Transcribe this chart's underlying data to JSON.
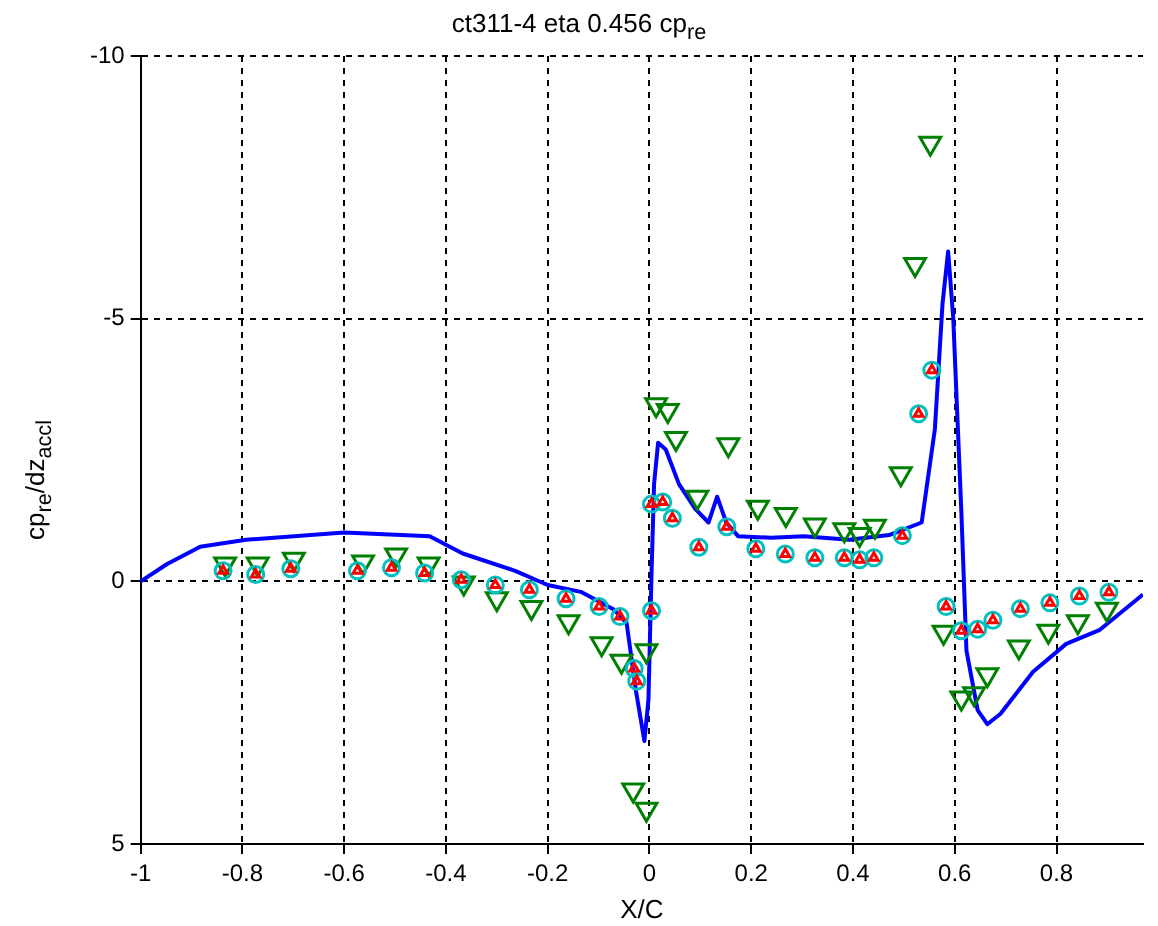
{
  "chart_data": {
    "type": "line",
    "title": "ct311-4 eta 0.456 cp$_{re}$",
    "xlabel": "X/C",
    "ylabel": "cp$_{re}$/dz$_{accl}$",
    "xlim": [
      -1,
      0.97
    ],
    "xticks": [
      -1,
      -0.8,
      -0.6,
      -0.4,
      -0.2,
      0,
      0.2,
      0.4,
      0.6,
      0.8
    ],
    "ylim": [
      5,
      -10
    ],
    "yticks": [
      -10,
      -5,
      0,
      5
    ],
    "grid": true,
    "series": [
      {
        "color": "#0000ff",
        "marker": "none",
        "x": [
          -1,
          -0.948,
          -0.883,
          -0.793,
          -0.6,
          -0.432,
          -0.367,
          -0.264,
          -0.2,
          -0.135,
          -0.071,
          -0.045,
          -0.026,
          -0.01,
          -0.002,
          0.004,
          0.009,
          0.017,
          0.032,
          0.058,
          0.09,
          0.116,
          0.133,
          0.151,
          0.174,
          0.239,
          0.303,
          0.393,
          0.471,
          0.535,
          0.561,
          0.576,
          0.587,
          0.597,
          0.613,
          0.623,
          0.645,
          0.664,
          0.69,
          0.754,
          0.819,
          0.884,
          0.97
        ],
        "values": [
          0,
          -0.33,
          -0.66,
          -0.79,
          -0.93,
          -0.86,
          -0.53,
          -0.2,
          0.07,
          0.2,
          0.53,
          0.79,
          2.12,
          3.04,
          2.25,
          -0.13,
          -1.85,
          -2.64,
          -2.51,
          -1.85,
          -1.38,
          -1.12,
          -1.61,
          -1.12,
          -0.86,
          -0.83,
          -0.86,
          -0.79,
          -0.88,
          -1.12,
          -2.9,
          -5.29,
          -6.28,
          -5.02,
          -1.32,
          1.32,
          2.45,
          2.72,
          2.52,
          1.72,
          1.19,
          0.93,
          0.25
        ]
      },
      {
        "type": "scatter",
        "color": "#008000",
        "marker": "triangle_down",
        "x": [
          -0.834,
          -0.77,
          -0.699,
          -0.563,
          -0.498,
          -0.434,
          -0.365,
          -0.3,
          -0.232,
          -0.159,
          -0.094,
          -0.055,
          -0.006,
          -0.032,
          -0.006,
          0.013,
          0.036,
          0.052,
          0.094,
          0.155,
          0.213,
          0.268,
          0.325,
          0.383,
          0.413,
          0.443,
          0.494,
          0.522,
          0.552,
          0.578,
          0.613,
          0.638,
          0.664,
          0.726,
          0.784,
          0.842,
          0.899
        ],
        "values": [
          -0.33,
          -0.33,
          -0.42,
          -0.37,
          -0.5,
          -0.33,
          0.03,
          0.33,
          0.5,
          0.77,
          1.19,
          1.52,
          1.32,
          3.97,
          4.34,
          -3.36,
          -3.25,
          -2.72,
          -1.6,
          -2.6,
          -1.41,
          -1.27,
          -1.07,
          -0.98,
          -0.89,
          -1.05,
          -2.05,
          -6.03,
          -8.34,
          0.97,
          2.22,
          2.14,
          1.78,
          1.25,
          0.95,
          0.77,
          0.53
        ]
      },
      {
        "type": "scatter",
        "color": "#00c0c0",
        "marker": "circle",
        "x": [
          -0.838,
          -0.774,
          -0.705,
          -0.574,
          -0.507,
          -0.442,
          -0.37,
          -0.303,
          -0.236,
          -0.164,
          -0.099,
          -0.058,
          -0.03,
          -0.025,
          0.004,
          0.004,
          0.026,
          0.045,
          0.097,
          0.152,
          0.209,
          0.267,
          0.325,
          0.383,
          0.413,
          0.441,
          0.497,
          0.529,
          0.555,
          0.583,
          0.613,
          0.645,
          0.675,
          0.729,
          0.787,
          0.845,
          0.903
        ],
        "values": [
          -0.2,
          -0.13,
          -0.24,
          -0.2,
          -0.26,
          -0.16,
          -0.03,
          0.07,
          0.16,
          0.33,
          0.48,
          0.67,
          1.66,
          1.9,
          0.56,
          -1.47,
          -1.51,
          -1.2,
          -0.65,
          -1.04,
          -0.62,
          -0.52,
          -0.45,
          -0.45,
          -0.41,
          -0.45,
          -0.87,
          -3.19,
          -4.02,
          0.48,
          0.94,
          0.91,
          0.74,
          0.52,
          0.41,
          0.28,
          0.21
        ]
      },
      {
        "type": "scatter",
        "color": "#ff0000",
        "marker": "triangle",
        "x": [
          -0.838,
          -0.774,
          -0.705,
          -0.574,
          -0.507,
          -0.442,
          -0.37,
          -0.303,
          -0.236,
          -0.164,
          -0.099,
          -0.058,
          -0.03,
          -0.025,
          0.004,
          0.004,
          0.026,
          0.045,
          0.097,
          0.152,
          0.209,
          0.267,
          0.325,
          0.383,
          0.413,
          0.441,
          0.497,
          0.529,
          0.555,
          0.583,
          0.613,
          0.645,
          0.675,
          0.729,
          0.787,
          0.845,
          0.903
        ],
        "values": [
          -0.2,
          -0.13,
          -0.24,
          -0.2,
          -0.26,
          -0.16,
          -0.03,
          0.07,
          0.16,
          0.33,
          0.48,
          0.67,
          1.66,
          1.9,
          0.56,
          -1.47,
          -1.51,
          -1.2,
          -0.65,
          -1.04,
          -0.62,
          -0.52,
          -0.45,
          -0.45,
          -0.41,
          -0.45,
          -0.87,
          -3.19,
          -4.02,
          0.48,
          0.94,
          0.91,
          0.74,
          0.52,
          0.41,
          0.28,
          0.21
        ]
      }
    ]
  }
}
